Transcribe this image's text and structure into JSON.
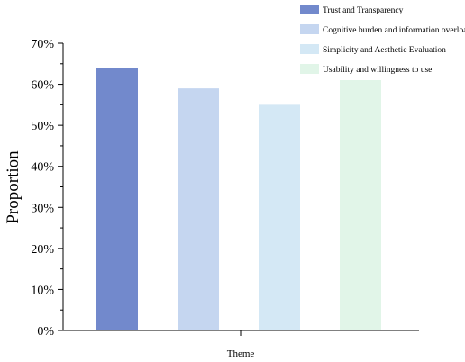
{
  "chart_data": {
    "type": "bar",
    "xlabel": "Theme",
    "ylabel": "Proportion",
    "ylim": [
      0,
      70
    ],
    "yticks": [
      "0%",
      "10%",
      "20%",
      "30%",
      "40%",
      "50%",
      "60%",
      "70%"
    ],
    "grid": false,
    "legend_position": "top-right",
    "series": [
      {
        "name": "Trust and Transparency",
        "value": 64,
        "color": "#7289cc"
      },
      {
        "name": "Cognitive burden and information overload",
        "value": 59,
        "color": "#c5d6f0"
      },
      {
        "name": "Simplicity and Aesthetic Evaluation",
        "value": 55,
        "color": "#d4e8f5"
      },
      {
        "name": "Usability and willingness to use",
        "value": 61,
        "color": "#e1f5e8"
      }
    ]
  }
}
